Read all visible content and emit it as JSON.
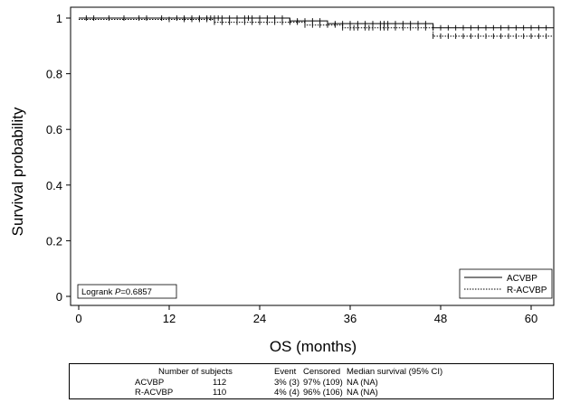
{
  "chart_data": {
    "type": "line",
    "xlabel": "OS (months)",
    "ylabel": "Survival probability",
    "xlim": [
      0,
      63
    ],
    "ylim": [
      0,
      1
    ],
    "xticks": [
      0,
      12,
      24,
      36,
      48,
      60
    ],
    "yticks": [
      0,
      0.2,
      0.4,
      0.6,
      0.8,
      1
    ],
    "grid": false,
    "legend_position": "bottom-right",
    "annotation": {
      "prefix": "Logrank ",
      "italic": "P",
      "suffix": "=0.6857"
    },
    "series": [
      {
        "name": "ACVBP",
        "style": "solid",
        "steps": [
          [
            0,
            1.0
          ],
          [
            28,
            0.99
          ],
          [
            33,
            0.98
          ],
          [
            47,
            0.965
          ]
        ],
        "end_x": 63,
        "censor_x": [
          1,
          2,
          4,
          6,
          8,
          9,
          11,
          13,
          14,
          15,
          16,
          17,
          17.5,
          18,
          18.5,
          19,
          20,
          21,
          22,
          22.5,
          23,
          24,
          25,
          26,
          27,
          28,
          29,
          30,
          31,
          32,
          33,
          34,
          35,
          36,
          37,
          38,
          39,
          40,
          40.5,
          41,
          42,
          43,
          44,
          45,
          46,
          47,
          48,
          49,
          50,
          51,
          52,
          53,
          54,
          55,
          56,
          57,
          58,
          59,
          60,
          61,
          62
        ]
      },
      {
        "name": "R-ACVBP",
        "style": "dotted",
        "steps": [
          [
            0,
            0.995
          ],
          [
            18,
            0.985
          ],
          [
            30,
            0.975
          ],
          [
            35,
            0.965
          ],
          [
            47,
            0.935
          ]
        ],
        "end_x": 63,
        "censor_x": [
          12,
          14,
          15,
          16,
          17,
          18,
          19,
          20,
          21,
          22,
          23,
          24,
          25,
          26,
          27,
          28,
          29,
          30,
          31,
          32,
          33,
          34,
          35,
          36,
          36.5,
          37,
          38,
          38.5,
          39,
          40,
          40.5,
          41,
          42,
          43,
          44,
          45,
          46,
          47,
          48,
          49,
          50,
          51,
          52,
          53,
          54,
          55,
          56,
          57,
          58,
          59,
          60,
          61,
          62
        ]
      }
    ]
  },
  "summary_table": {
    "headers": [
      "Number of subjects",
      "Event",
      "Censored",
      "Median survival (95% CI)"
    ],
    "rows": [
      {
        "group": "ACVBP",
        "subjects": "112",
        "event": "3% (3)",
        "censored": "97% (109)",
        "median": "NA  (NA)"
      },
      {
        "group": "R-ACVBP",
        "subjects": "110",
        "event": "4% (4)",
        "censored": "96% (106)",
        "median": "NA  (NA)"
      }
    ]
  }
}
